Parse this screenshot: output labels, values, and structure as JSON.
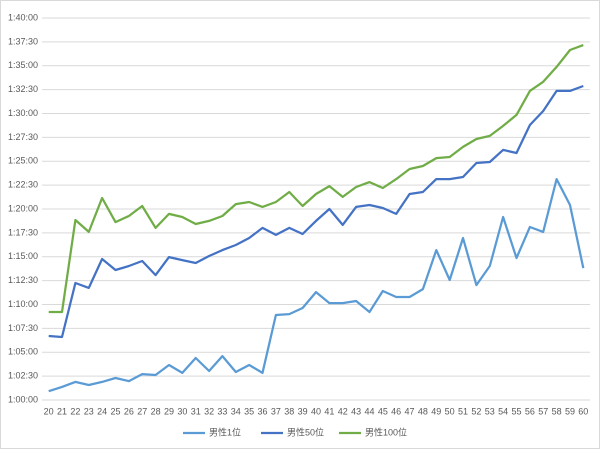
{
  "chart_data": {
    "type": "line",
    "categories": [
      "20",
      "21",
      "22",
      "23",
      "24",
      "25",
      "26",
      "27",
      "28",
      "29",
      "30",
      "31",
      "32",
      "33",
      "34",
      "35",
      "36",
      "37",
      "38",
      "39",
      "40",
      "41",
      "42",
      "43",
      "44",
      "45",
      "46",
      "47",
      "48",
      "49",
      "50",
      "51",
      "52",
      "53",
      "54",
      "55",
      "56",
      "57",
      "58",
      "59",
      "60"
    ],
    "series": [
      {
        "name": "男性1位",
        "color": "#5b9bd5",
        "values": [
          3655,
          3682,
          3714,
          3694,
          3714,
          3738,
          3719,
          3763,
          3757,
          3820,
          3770,
          3864,
          3782,
          3876,
          3776,
          3820,
          3770,
          4134,
          4140,
          4178,
          4278,
          4209,
          4209,
          4222,
          4153,
          4285,
          4247,
          4247,
          4297,
          4542,
          4354,
          4618,
          4322,
          4442,
          4750,
          4492,
          4687,
          4656,
          4988,
          4825,
          4429
        ]
      },
      {
        "name": "男性50位",
        "color": "#4472c4",
        "values": [
          4002,
          3996,
          4335,
          4304,
          4486,
          4417,
          4442,
          4473,
          4385,
          4498,
          4479,
          4461,
          4505,
          4542,
          4574,
          4618,
          4681,
          4637,
          4681,
          4643,
          4725,
          4800,
          4700,
          4813,
          4825,
          4806,
          4769,
          4894,
          4907,
          4988,
          4988,
          5001,
          5089,
          5095,
          5171,
          5152,
          5328,
          5416,
          5542,
          5542,
          5573
        ]
      },
      {
        "name": "男性100位",
        "color": "#70ad47",
        "values": [
          4153,
          4153,
          4731,
          4656,
          4869,
          4718,
          4756,
          4819,
          4681,
          4769,
          4750,
          4706,
          4725,
          4756,
          4831,
          4844,
          4813,
          4844,
          4907,
          4819,
          4894,
          4944,
          4876,
          4938,
          4969,
          4932,
          4988,
          5051,
          5070,
          5120,
          5127,
          5190,
          5240,
          5259,
          5322,
          5391,
          5542,
          5599,
          5693,
          5799,
          5830
        ]
      }
    ],
    "ylim": [
      3600,
      6000
    ],
    "yticks": [
      {
        "value": 3600,
        "label": "1:00:00"
      },
      {
        "value": 3750,
        "label": "1:02:30"
      },
      {
        "value": 3900,
        "label": "1:05:00"
      },
      {
        "value": 4050,
        "label": "1:07:30"
      },
      {
        "value": 4200,
        "label": "1:10:00"
      },
      {
        "value": 4350,
        "label": "1:12:30"
      },
      {
        "value": 4500,
        "label": "1:15:00"
      },
      {
        "value": 4650,
        "label": "1:17:30"
      },
      {
        "value": 4800,
        "label": "1:20:00"
      },
      {
        "value": 4950,
        "label": "1:22:30"
      },
      {
        "value": 5100,
        "label": "1:25:00"
      },
      {
        "value": 5250,
        "label": "1:27:30"
      },
      {
        "value": 5400,
        "label": "1:30:00"
      },
      {
        "value": 5550,
        "label": "1:32:30"
      },
      {
        "value": 5700,
        "label": "1:35:00"
      },
      {
        "value": 5850,
        "label": "1:37:30"
      },
      {
        "value": 6000,
        "label": "1:40:00"
      }
    ],
    "grid": true,
    "legend": "bottom"
  }
}
